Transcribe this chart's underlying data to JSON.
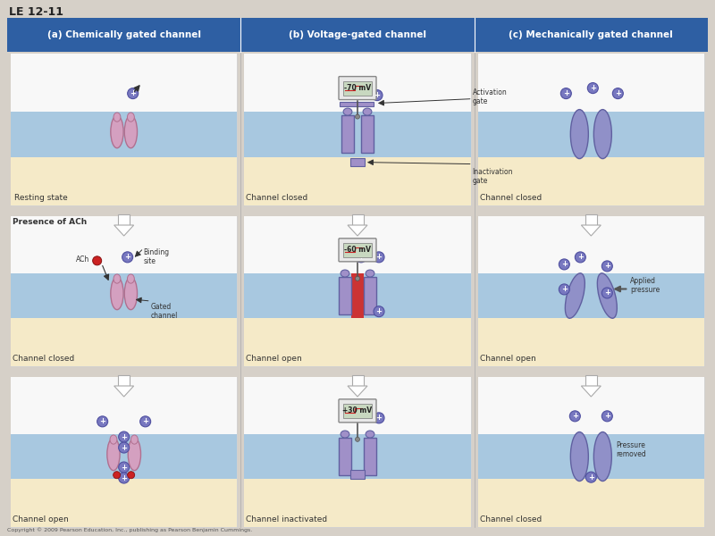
{
  "title": "LE 12-11",
  "col_headers": [
    "(a) Chemically gated channel",
    "(b) Voltage-gated channel",
    "(c) Mechanically gated channel"
  ],
  "header_bg": "#2E5FA3",
  "header_color": "#FFFFFF",
  "bg_outer": "#D6D0C8",
  "bg_top": "#F0EFEE",
  "bg_membrane": "#A8C8E0",
  "bg_bottom": "#F5EAC8",
  "protein_color": "#D4A0C0",
  "protein_edge": "#B07090",
  "ion_color": "#7878C0",
  "ion_text": "#5050A0",
  "red_box": "#CC3333",
  "voltage_box_bg": "#E8E8E8",
  "voltage_box_edge": "#888888",
  "mech_color": "#9090C8",
  "mech_edge": "#6060A0",
  "volt_color": "#A090C8",
  "volt_edge": "#6060A0",
  "copyright": "Copyright © 2009 Pearson Education, Inc., publishing as Pearson Benjamin Cummings."
}
